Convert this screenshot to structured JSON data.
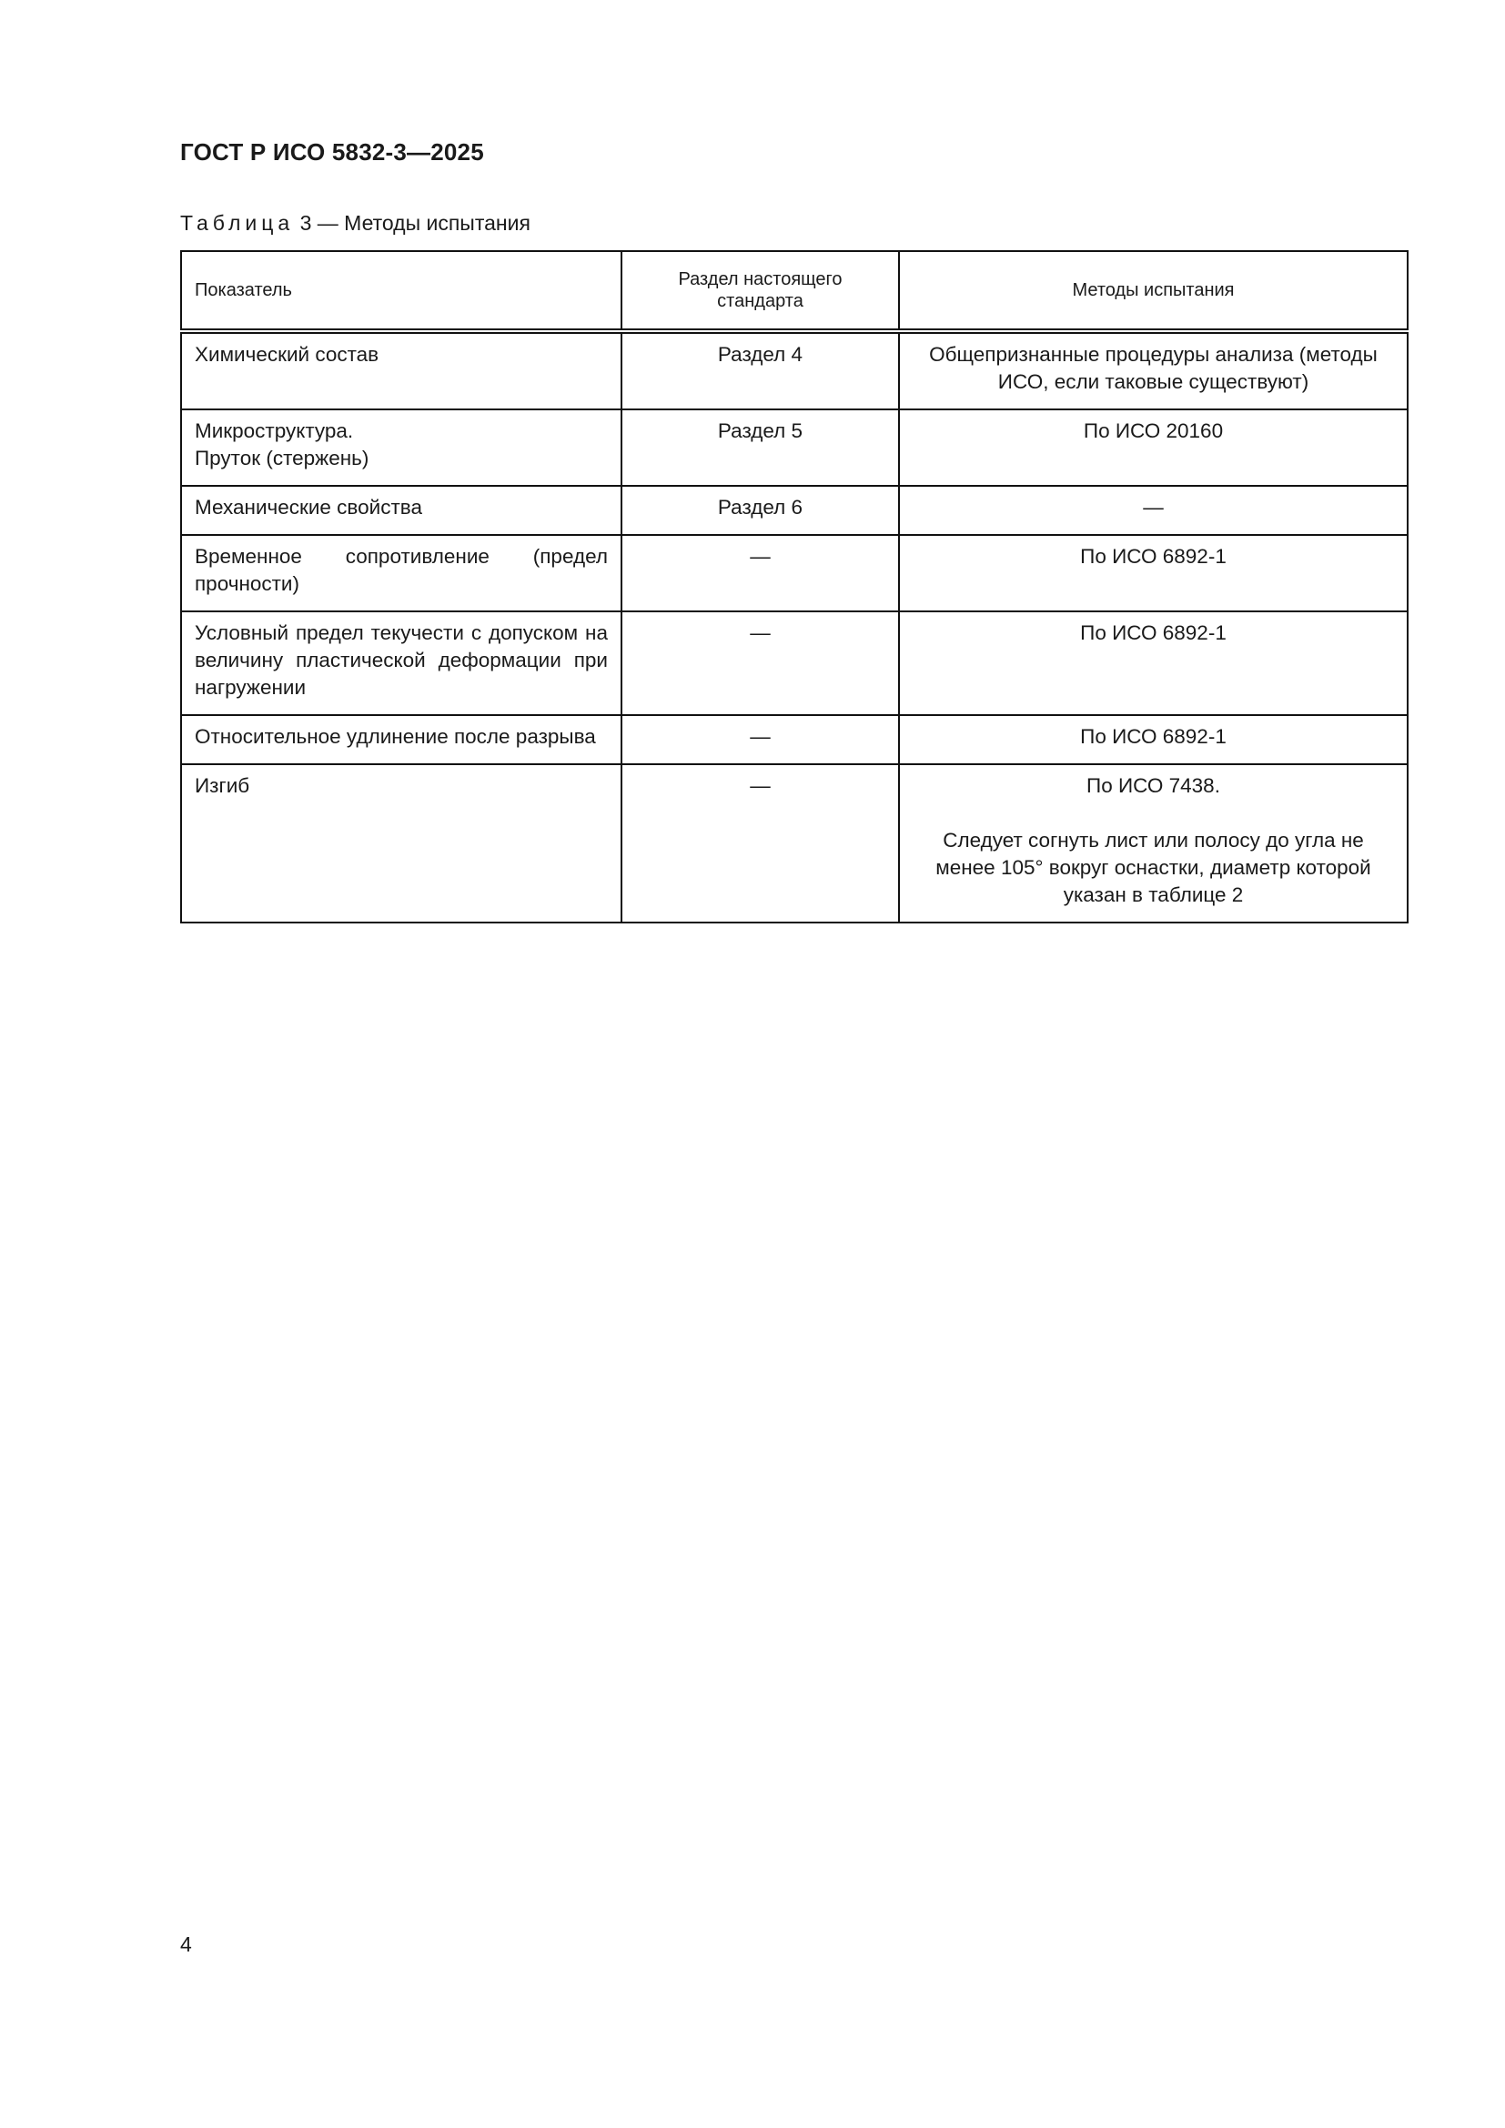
{
  "header": {
    "doc_title": "ГОСТ Р ИСО 5832-3—2025"
  },
  "table": {
    "caption_label": "Таблица",
    "caption_rest": "3 — Методы испытания",
    "columns": [
      "Показатель",
      "Раздел настоящего стандарта",
      "Методы испытания"
    ],
    "rows": [
      {
        "indicator": "Химический состав",
        "section": "Раздел 4",
        "method": "Общепризнанные процедуры анализа (методы ИСО, если таковые существуют)"
      },
      {
        "indicator": "Микроструктура.",
        "indicator2": "Пруток (стержень)",
        "section": "Раздел 5",
        "method": "По ИСО 20160"
      },
      {
        "indicator": "Механические свойства",
        "section": "Раздел 6",
        "method": "—"
      },
      {
        "indicator": "Временное сопротивление (предел прочности)",
        "section": "—",
        "method": "По ИСО 6892-1"
      },
      {
        "indicator": "Условный предел текучести с допуском на величину пластической деформации при нагружении",
        "section": "—",
        "method": "По ИСО 6892-1"
      },
      {
        "indicator": "Относительное удлинение после разрыва",
        "section": "—",
        "method": "По ИСО 6892-1"
      },
      {
        "indicator": "Изгиб",
        "section": "—",
        "method": "По ИСО 7438.",
        "method2": "Следует согнуть лист или полосу до угла не менее 105° вокруг оснастки, диаметр которой указан в таблице 2"
      }
    ]
  },
  "footer": {
    "page_number": "4"
  }
}
